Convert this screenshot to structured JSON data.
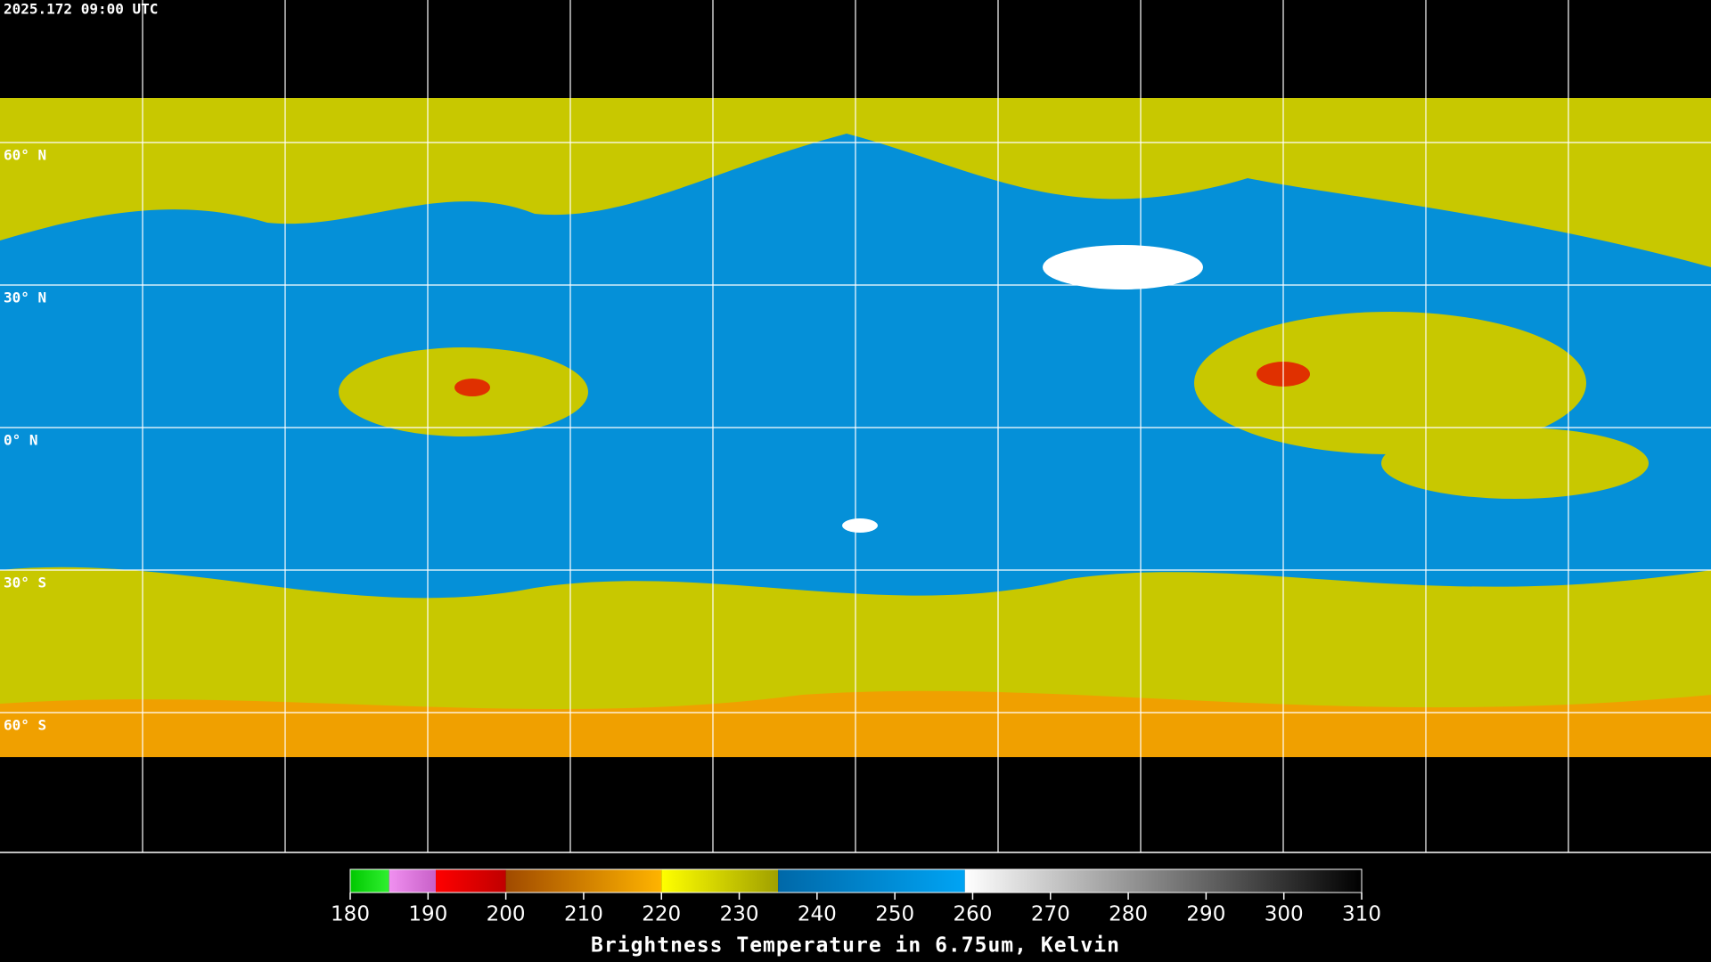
{
  "header": {
    "timestamp": "2025.172 09:00 UTC"
  },
  "map": {
    "latitude_labels": [
      "60° N",
      "30° N",
      "0° N",
      "30° S",
      "60° S"
    ]
  },
  "colorbar": {
    "title": "Brightness Temperature in 6.75um, Kelvin",
    "range": [
      180,
      310
    ],
    "ticks": [
      180,
      190,
      200,
      210,
      220,
      230,
      240,
      250,
      260,
      270,
      280,
      290,
      300,
      310
    ],
    "bands": [
      {
        "start": 180,
        "end": 185,
        "colors": [
          "#00c800",
          "#30f030"
        ]
      },
      {
        "start": 185,
        "end": 191,
        "colors": [
          "#f090f0",
          "#c860c8"
        ]
      },
      {
        "start": 191,
        "end": 200,
        "colors": [
          "#ff0000",
          "#c00000"
        ]
      },
      {
        "start": 200,
        "end": 220,
        "colors": [
          "#a04a00",
          "#ffb400"
        ]
      },
      {
        "start": 220,
        "end": 235,
        "colors": [
          "#ffff00",
          "#a0a000"
        ]
      },
      {
        "start": 235,
        "end": 259,
        "colors": [
          "#0068a8",
          "#00a4f4"
        ]
      },
      {
        "start": 259,
        "end": 310,
        "colors": [
          "#ffffff",
          "#000000"
        ]
      }
    ]
  }
}
